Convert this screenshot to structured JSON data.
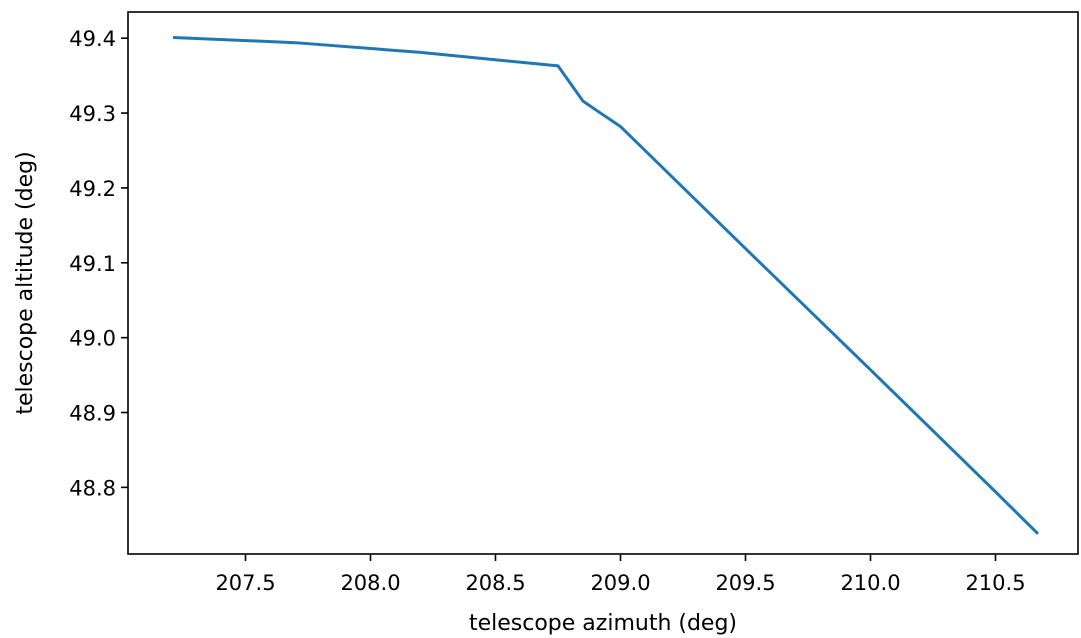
{
  "chart_data": {
    "type": "line",
    "title": "",
    "xlabel": "telescope azimuth (deg)",
    "ylabel": "telescope altitude (deg)",
    "xlim": [
      207.03,
      210.83
    ],
    "ylim": [
      48.711,
      49.435
    ],
    "grid": false,
    "legend": "none",
    "x_ticks": [
      207.5,
      208.0,
      208.5,
      209.0,
      209.5,
      210.0,
      210.5
    ],
    "x_tick_labels": [
      "207.5",
      "208.0",
      "208.5",
      "209.0",
      "209.5",
      "210.0",
      "210.5"
    ],
    "y_ticks": [
      48.8,
      48.9,
      49.0,
      49.1,
      49.2,
      49.3,
      49.4
    ],
    "y_tick_labels": [
      "48.8",
      "48.9",
      "49.0",
      "49.1",
      "49.2",
      "49.3",
      "49.4"
    ],
    "series": [
      {
        "color": "#1f77b4",
        "x": [
          207.21,
          207.7,
          208.2,
          208.75,
          208.85,
          208.92,
          209.0,
          209.5,
          210.0,
          210.5,
          210.67
        ],
        "y": [
          49.401,
          49.394,
          49.381,
          49.363,
          49.316,
          49.3,
          49.282,
          49.119,
          48.957,
          48.794,
          48.738
        ]
      }
    ]
  }
}
